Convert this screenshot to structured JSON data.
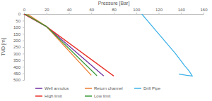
{
  "chart_data": {
    "type": "line",
    "x_label": "Pressure [Bar]",
    "y_label": "TVD [m]",
    "xlim": [
      0,
      160
    ],
    "xticks": [
      0,
      20,
      40,
      60,
      80,
      100,
      120,
      140,
      160
    ],
    "ylim": [
      0,
      500
    ],
    "yticks": [
      0,
      50,
      100,
      150,
      200,
      250,
      300,
      350,
      400,
      450,
      500
    ],
    "legend": "bottom",
    "series": [
      {
        "name": "Well annulus",
        "color": "#7030a0",
        "x": [
          0,
          20,
          71
        ],
        "values": [
          0,
          95,
          470
        ]
      },
      {
        "name": "Return channel",
        "color": "#ed7d31",
        "x": [
          3,
          20,
          60
        ],
        "values": [
          0,
          95,
          465
        ]
      },
      {
        "name": "Drill Pipe",
        "color": "#3fb3e8",
        "x": [
          105,
          115,
          125,
          135,
          143,
          147,
          150,
          145,
          138
        ],
        "values": [
          0,
          100,
          200,
          300,
          390,
          430,
          470,
          465,
          455
        ]
      },
      {
        "name": "High limit",
        "color": "#e8312a",
        "x": [
          0,
          20,
          80
        ],
        "values": [
          0,
          95,
          470
        ]
      },
      {
        "name": "Low limit",
        "color": "#3a9b3a",
        "x": [
          1,
          20,
          65
        ],
        "values": [
          0,
          95,
          468
        ]
      }
    ]
  }
}
